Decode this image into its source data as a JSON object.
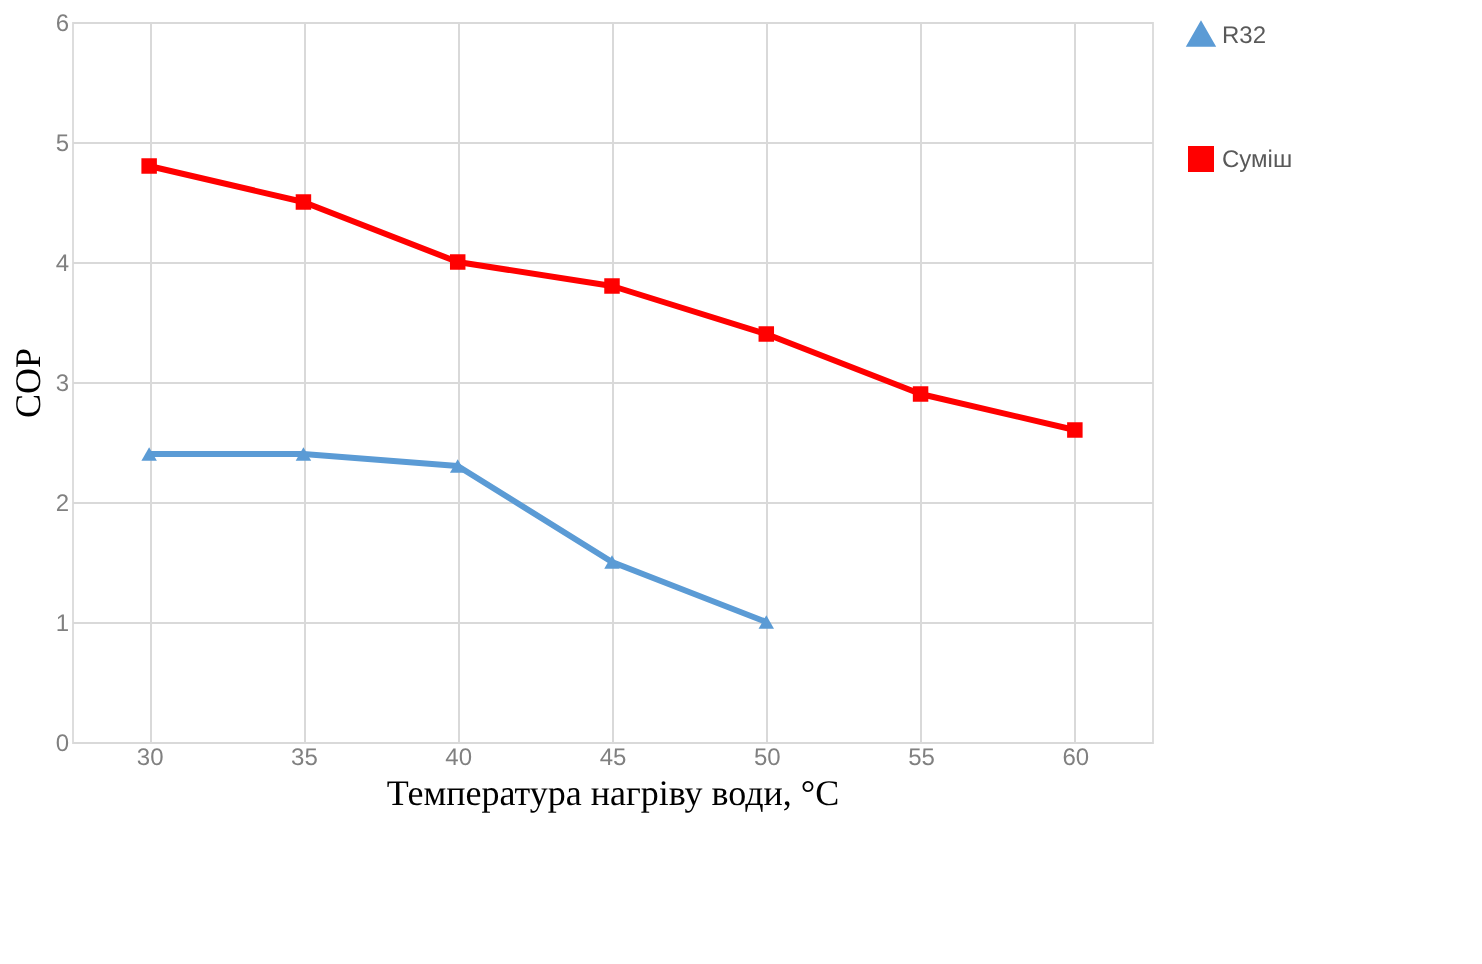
{
  "chart_data": {
    "type": "line",
    "xlabel": "Температура нагріву води, °C",
    "ylabel": "COP",
    "categories": [
      "30",
      "35",
      "40",
      "45",
      "50",
      "55",
      "60"
    ],
    "series": [
      {
        "name": "R32",
        "color": "#5b9bd5",
        "marker": "triangle",
        "values": [
          2.4,
          2.4,
          2.3,
          1.5,
          1.0,
          null,
          null
        ]
      },
      {
        "name": "Суміш",
        "color": "#ff0000",
        "marker": "square",
        "values": [
          4.8,
          4.5,
          4.0,
          3.8,
          3.4,
          2.9,
          2.6
        ]
      }
    ],
    "ylim": [
      0,
      6
    ],
    "yticks": [
      0,
      1,
      2,
      3,
      4,
      5,
      6
    ],
    "grid": true,
    "legend": "right",
    "line_style": "solid"
  }
}
